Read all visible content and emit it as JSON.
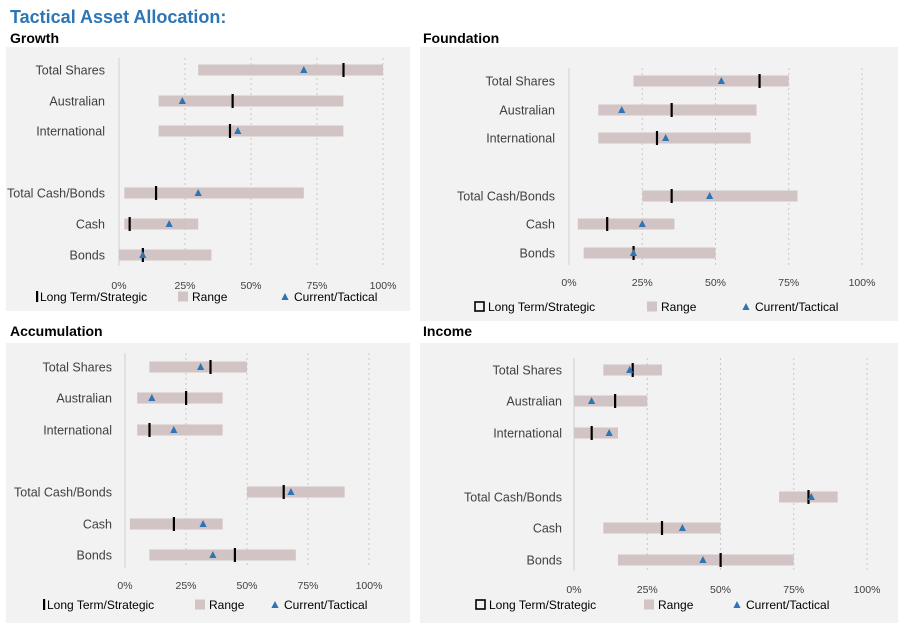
{
  "page_title": "Tactical Asset Allocation:",
  "legend": {
    "strategic": "Long Term/Strategic",
    "range": "Range",
    "tactical": "Current/Tactical"
  },
  "colors": {
    "range": "#d2c4c4",
    "strategic": "#000000",
    "tactical": "#2e75b6",
    "panel": "#f2f2f2",
    "grid": "#c8c8c8",
    "title": "#2e75b6"
  },
  "chart_data": [
    {
      "title": "Growth",
      "type": "range-bar",
      "x_ticks": [
        "0%",
        "25%",
        "50%",
        "75%",
        "100%"
      ],
      "xlim": [
        0,
        100
      ],
      "rows": [
        {
          "label": "Total Shares",
          "range": [
            30,
            100
          ],
          "strategic": 85,
          "tactical": 70
        },
        {
          "label": "Australian",
          "range": [
            15,
            85
          ],
          "strategic": 43,
          "tactical": 24
        },
        {
          "label": "International",
          "range": [
            15,
            85
          ],
          "strategic": 42,
          "tactical": 45
        },
        {
          "label": "Total Cash/Bonds",
          "range": [
            2,
            70
          ],
          "strategic": 14,
          "tactical": 30
        },
        {
          "label": "Cash",
          "range": [
            2,
            30
          ],
          "strategic": 4,
          "tactical": 19
        },
        {
          "label": "Bonds",
          "range": [
            0,
            35
          ],
          "strategic": 9,
          "tactical": 9
        }
      ]
    },
    {
      "title": "Foundation",
      "type": "range-bar",
      "x_ticks": [
        "0%",
        "25%",
        "50%",
        "75%",
        "100%"
      ],
      "xlim": [
        0,
        100
      ],
      "rows": [
        {
          "label": "Total Shares",
          "range": [
            22,
            75
          ],
          "strategic": 65,
          "tactical": 52
        },
        {
          "label": "Australian",
          "range": [
            10,
            64
          ],
          "strategic": 35,
          "tactical": 18
        },
        {
          "label": "International",
          "range": [
            10,
            62
          ],
          "strategic": 30,
          "tactical": 33
        },
        {
          "label": "Total Cash/Bonds",
          "range": [
            25,
            78
          ],
          "strategic": 35,
          "tactical": 48
        },
        {
          "label": "Cash",
          "range": [
            3,
            36
          ],
          "strategic": 13,
          "tactical": 25
        },
        {
          "label": "Bonds",
          "range": [
            5,
            50
          ],
          "strategic": 22,
          "tactical": 22
        }
      ]
    },
    {
      "title": "Accumulation",
      "type": "range-bar",
      "x_ticks": [
        "0%",
        "25%",
        "50%",
        "75%",
        "100%"
      ],
      "xlim": [
        0,
        100
      ],
      "rows": [
        {
          "label": "Total Shares",
          "range": [
            10,
            50
          ],
          "strategic": 35,
          "tactical": 31
        },
        {
          "label": "Australian",
          "range": [
            5,
            40
          ],
          "strategic": 25,
          "tactical": 11
        },
        {
          "label": "International",
          "range": [
            5,
            40
          ],
          "strategic": 10,
          "tactical": 20
        },
        {
          "label": "Total Cash/Bonds",
          "range": [
            50,
            90
          ],
          "strategic": 65,
          "tactical": 68
        },
        {
          "label": "Cash",
          "range": [
            2,
            40
          ],
          "strategic": 20,
          "tactical": 32
        },
        {
          "label": "Bonds",
          "range": [
            10,
            70
          ],
          "strategic": 45,
          "tactical": 36
        }
      ]
    },
    {
      "title": "Income",
      "type": "range-bar",
      "x_ticks": [
        "0%",
        "25%",
        "50%",
        "75%",
        "100%"
      ],
      "xlim": [
        0,
        100
      ],
      "rows": [
        {
          "label": "Total Shares",
          "range": [
            10,
            30
          ],
          "strategic": 20,
          "tactical": 19
        },
        {
          "label": "Australian",
          "range": [
            0,
            25
          ],
          "strategic": 14,
          "tactical": 6
        },
        {
          "label": "International",
          "range": [
            0,
            15
          ],
          "strategic": 6,
          "tactical": 12
        },
        {
          "label": "Total Cash/Bonds",
          "range": [
            70,
            90
          ],
          "strategic": 80,
          "tactical": 81
        },
        {
          "label": "Cash",
          "range": [
            10,
            50
          ],
          "strategic": 30,
          "tactical": 37
        },
        {
          "label": "Bonds",
          "range": [
            15,
            75
          ],
          "strategic": 50,
          "tactical": 44
        }
      ]
    }
  ]
}
